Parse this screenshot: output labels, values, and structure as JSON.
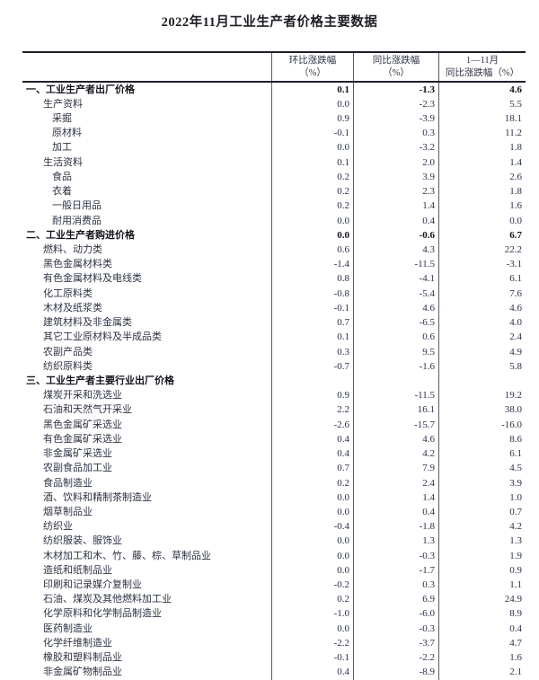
{
  "title": "2022年11月工业生产者价格主要数据",
  "table": {
    "columns": [
      {
        "line1": "环比涨跌幅",
        "line2": "（%）"
      },
      {
        "line1": "同比涨跌幅",
        "line2": "（%）"
      },
      {
        "line1": "1—11月",
        "line2": "同比涨跌幅（%）"
      }
    ],
    "rows": [
      {
        "label": "一、工业生产者出厂价格",
        "indent": 0,
        "bold": true,
        "values": [
          "0.1",
          "-1.3",
          "4.6"
        ]
      },
      {
        "label": "生产资料",
        "indent": 1,
        "bold": false,
        "values": [
          "0.0",
          "-2.3",
          "5.5"
        ]
      },
      {
        "label": "采掘",
        "indent": 2,
        "bold": false,
        "values": [
          "0.9",
          "-3.9",
          "18.1"
        ]
      },
      {
        "label": "原材料",
        "indent": 2,
        "bold": false,
        "values": [
          "-0.1",
          "0.3",
          "11.2"
        ]
      },
      {
        "label": "加工",
        "indent": 2,
        "bold": false,
        "values": [
          "0.0",
          "-3.2",
          "1.8"
        ]
      },
      {
        "label": "生活资料",
        "indent": 1,
        "bold": false,
        "values": [
          "0.1",
          "2.0",
          "1.4"
        ]
      },
      {
        "label": "食品",
        "indent": 2,
        "bold": false,
        "values": [
          "0.2",
          "3.9",
          "2.6"
        ]
      },
      {
        "label": "衣着",
        "indent": 2,
        "bold": false,
        "values": [
          "0.2",
          "2.3",
          "1.8"
        ]
      },
      {
        "label": "一般日用品",
        "indent": 2,
        "bold": false,
        "values": [
          "0.2",
          "1.4",
          "1.6"
        ]
      },
      {
        "label": "耐用消费品",
        "indent": 2,
        "bold": false,
        "values": [
          "0.0",
          "0.4",
          "0.0"
        ]
      },
      {
        "label": "二、工业生产者购进价格",
        "indent": 0,
        "bold": true,
        "values": [
          "0.0",
          "-0.6",
          "6.7"
        ]
      },
      {
        "label": "燃料、动力类",
        "indent": 1,
        "bold": false,
        "values": [
          "0.6",
          "4.3",
          "22.2"
        ]
      },
      {
        "label": "黑色金属材料类",
        "indent": 1,
        "bold": false,
        "values": [
          "-1.4",
          "-11.5",
          "-3.1"
        ]
      },
      {
        "label": "有色金属材料及电线类",
        "indent": 1,
        "bold": false,
        "values": [
          "0.8",
          "-4.1",
          "6.1"
        ]
      },
      {
        "label": "化工原料类",
        "indent": 1,
        "bold": false,
        "values": [
          "-0.8",
          "-5.4",
          "7.6"
        ]
      },
      {
        "label": "木材及纸浆类",
        "indent": 1,
        "bold": false,
        "values": [
          "-0.1",
          "4.6",
          "4.6"
        ]
      },
      {
        "label": "建筑材料及非金属类",
        "indent": 1,
        "bold": false,
        "values": [
          "0.7",
          "-6.5",
          "4.0"
        ]
      },
      {
        "label": "其它工业原材料及半成品类",
        "indent": 1,
        "bold": false,
        "values": [
          "0.1",
          "0.6",
          "2.4"
        ]
      },
      {
        "label": "农副产品类",
        "indent": 1,
        "bold": false,
        "values": [
          "0.3",
          "9.5",
          "4.9"
        ]
      },
      {
        "label": "纺织原料类",
        "indent": 1,
        "bold": false,
        "values": [
          "-0.7",
          "-1.6",
          "5.8"
        ]
      },
      {
        "label": "三、工业生产者主要行业出厂价格",
        "indent": 0,
        "bold": true,
        "values": [
          "",
          "",
          ""
        ]
      },
      {
        "label": "煤炭开采和洗选业",
        "indent": 1,
        "bold": false,
        "values": [
          "0.9",
          "-11.5",
          "19.2"
        ]
      },
      {
        "label": "石油和天然气开采业",
        "indent": 1,
        "bold": false,
        "values": [
          "2.2",
          "16.1",
          "38.0"
        ]
      },
      {
        "label": "黑色金属矿采选业",
        "indent": 1,
        "bold": false,
        "values": [
          "-2.6",
          "-15.7",
          "-16.0"
        ]
      },
      {
        "label": "有色金属矿采选业",
        "indent": 1,
        "bold": false,
        "values": [
          "0.4",
          "4.6",
          "8.6"
        ]
      },
      {
        "label": "非金属矿采选业",
        "indent": 1,
        "bold": false,
        "values": [
          "0.4",
          "4.2",
          "6.1"
        ]
      },
      {
        "label": "农副食品加工业",
        "indent": 1,
        "bold": false,
        "values": [
          "0.7",
          "7.9",
          "4.5"
        ]
      },
      {
        "label": "食品制造业",
        "indent": 1,
        "bold": false,
        "values": [
          "0.2",
          "2.4",
          "3.9"
        ]
      },
      {
        "label": "酒、饮料和精制茶制造业",
        "indent": 1,
        "bold": false,
        "values": [
          "0.0",
          "1.4",
          "1.0"
        ]
      },
      {
        "label": "烟草制品业",
        "indent": 1,
        "bold": false,
        "values": [
          "0.0",
          "0.4",
          "0.7"
        ]
      },
      {
        "label": "纺织业",
        "indent": 1,
        "bold": false,
        "values": [
          "-0.4",
          "-1.8",
          "4.2"
        ]
      },
      {
        "label": "纺织服装、服饰业",
        "indent": 1,
        "bold": false,
        "values": [
          "0.0",
          "1.3",
          "1.3"
        ]
      },
      {
        "label": "木材加工和木、竹、藤、棕、草制品业",
        "indent": 1,
        "bold": false,
        "values": [
          "0.0",
          "-0.3",
          "1.9"
        ]
      },
      {
        "label": "造纸和纸制品业",
        "indent": 1,
        "bold": false,
        "values": [
          "0.0",
          "-1.7",
          "0.9"
        ]
      },
      {
        "label": "印刷和记录媒介复制业",
        "indent": 1,
        "bold": false,
        "values": [
          "-0.2",
          "0.3",
          "1.1"
        ]
      },
      {
        "label": "石油、煤炭及其他燃料加工业",
        "indent": 1,
        "bold": false,
        "values": [
          "0.2",
          "6.9",
          "24.9"
        ]
      },
      {
        "label": "化学原料和化学制品制造业",
        "indent": 1,
        "bold": false,
        "values": [
          "-1.0",
          "-6.0",
          "8.9"
        ]
      },
      {
        "label": "医药制造业",
        "indent": 1,
        "bold": false,
        "values": [
          "0.0",
          "-0.3",
          "0.4"
        ]
      },
      {
        "label": "化学纤维制造业",
        "indent": 1,
        "bold": false,
        "values": [
          "-2.2",
          "-3.7",
          "4.7"
        ]
      },
      {
        "label": "橡胶和塑料制品业",
        "indent": 1,
        "bold": false,
        "values": [
          "-0.1",
          "-2.2",
          "1.6"
        ]
      },
      {
        "label": "非金属矿物制品业",
        "indent": 1,
        "bold": false,
        "values": [
          "0.4",
          "-8.9",
          "2.1"
        ]
      }
    ]
  }
}
